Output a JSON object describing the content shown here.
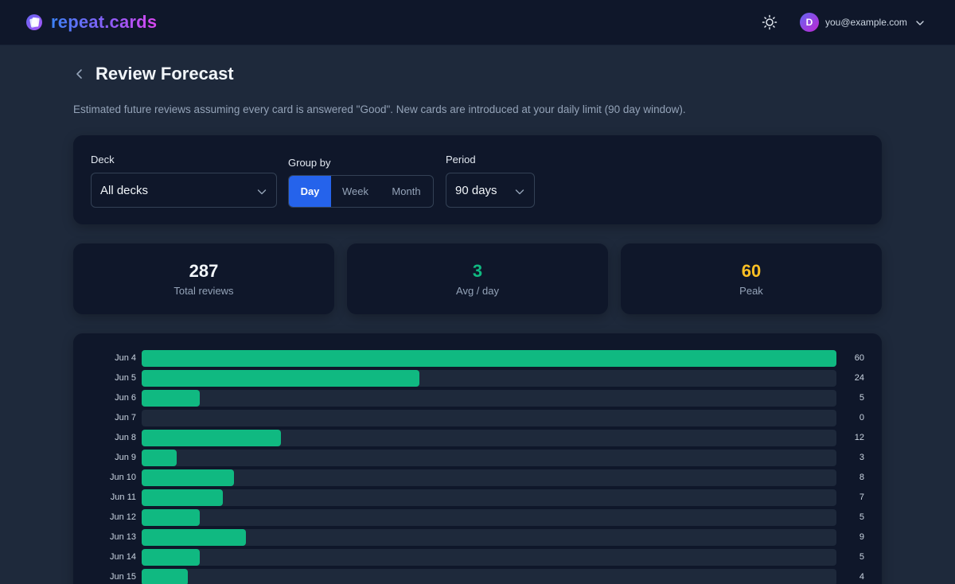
{
  "app": {
    "brand_name": "repeat.cards",
    "brand_gradient": [
      "#3b82f6",
      "#8b5cf6",
      "#d946ef"
    ]
  },
  "header": {
    "theme_icon": "sun-icon",
    "user": {
      "initial": "D",
      "email": "you@example.com"
    }
  },
  "page": {
    "title": "Review Forecast",
    "description": "Estimated future reviews assuming every card is answered \"Good\". New cards are introduced at your daily limit (90 day window)."
  },
  "filters": {
    "deck": {
      "label": "Deck",
      "value": "All decks"
    },
    "group_by": {
      "label": "Group by",
      "options": [
        "Day",
        "Week",
        "Month"
      ],
      "selected": "Day"
    },
    "period": {
      "label": "Period",
      "value": "90 days"
    }
  },
  "stats": {
    "total": {
      "value": "287",
      "label": "Total reviews",
      "color": "#f1f5f9"
    },
    "avg": {
      "value": "3",
      "label": "Avg / day",
      "color": "#10b981"
    },
    "peak": {
      "value": "60",
      "label": "Peak",
      "color": "#fbbf24"
    }
  },
  "chart_data": {
    "type": "bar",
    "orientation": "horizontal",
    "bar_color": "#10b981",
    "categories": [
      "Jun 4",
      "Jun 5",
      "Jun 6",
      "Jun 7",
      "Jun 8",
      "Jun 9",
      "Jun 10",
      "Jun 11",
      "Jun 12",
      "Jun 13",
      "Jun 14",
      "Jun 15"
    ],
    "values": [
      60,
      24,
      5,
      0,
      12,
      3,
      8,
      7,
      5,
      9,
      5,
      4
    ],
    "max": 60
  }
}
